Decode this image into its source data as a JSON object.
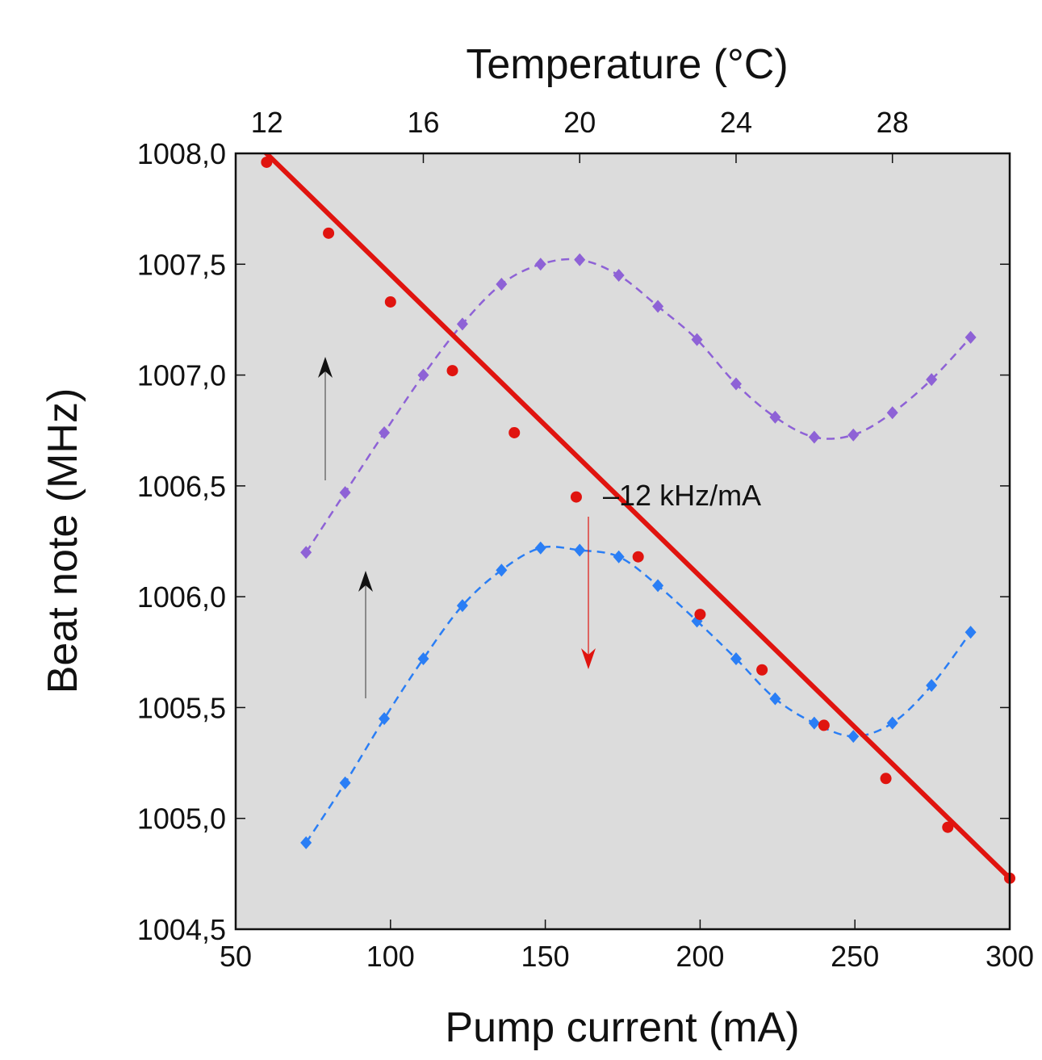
{
  "chart_data": {
    "type": "line",
    "title": "",
    "xlabel": "Pump current (mA)",
    "ylabel": "Beat note (MHz)",
    "top_xlabel": "Temperature (°C)",
    "xlim": [
      50,
      300
    ],
    "ylim": [
      1004.5,
      1008.0
    ],
    "top_xlim": [
      11.2,
      31.0
    ],
    "x_ticks": [
      50,
      100,
      150,
      200,
      250,
      300
    ],
    "x_tick_labels": [
      "50",
      "100",
      "150",
      "200",
      "250",
      "300"
    ],
    "y_ticks": [
      1004.5,
      1005.0,
      1005.5,
      1006.0,
      1006.5,
      1007.0,
      1007.5,
      1008.0
    ],
    "y_tick_labels": [
      "1004,5",
      "1005,0",
      "1005,5",
      "1006,0",
      "1006,5",
      "1007,0",
      "1007,5",
      "1008,0"
    ],
    "top_ticks": [
      12,
      16,
      20,
      24,
      28
    ],
    "top_tick_labels": [
      "12",
      "16",
      "20",
      "24",
      "28"
    ],
    "background": "#dcdcdc",
    "grid": false,
    "annotation": "–12 kHz/mA",
    "series": [
      {
        "axis": "bottom",
        "color": "#e0140f",
        "style": "solid-circles",
        "x": [
          60,
          80,
          100,
          120,
          140,
          160,
          180,
          200,
          220,
          240,
          260,
          280,
          300
        ],
        "y": [
          1007.96,
          1007.64,
          1007.33,
          1007.02,
          1006.74,
          1006.45,
          1006.18,
          1005.92,
          1005.67,
          1005.42,
          1005.18,
          1004.96,
          1004.73
        ]
      },
      {
        "axis": "top",
        "color": "#8e62d6",
        "style": "dashed-diamonds",
        "x": [
          13,
          14,
          15,
          16,
          17,
          18,
          19,
          20,
          21,
          22,
          23,
          24,
          25,
          26,
          27,
          28,
          29,
          30
        ],
        "y": [
          1006.2,
          1006.47,
          1006.74,
          1007.0,
          1007.23,
          1007.41,
          1007.5,
          1007.52,
          1007.45,
          1007.31,
          1007.16,
          1006.96,
          1006.81,
          1006.72,
          1006.73,
          1006.83,
          1006.98,
          1007.17
        ]
      },
      {
        "axis": "top",
        "color": "#2a7ef5",
        "style": "dashed-diamonds",
        "x": [
          13,
          14,
          15,
          16,
          17,
          18,
          19,
          20,
          21,
          22,
          23,
          24,
          25,
          26,
          27,
          28,
          29,
          30
        ],
        "y": [
          1004.89,
          1005.16,
          1005.45,
          1005.72,
          1005.96,
          1006.12,
          1006.22,
          1006.21,
          1006.18,
          1006.05,
          1005.89,
          1005.72,
          1005.54,
          1005.43,
          1005.37,
          1005.43,
          1005.6,
          1005.84
        ]
      }
    ]
  }
}
